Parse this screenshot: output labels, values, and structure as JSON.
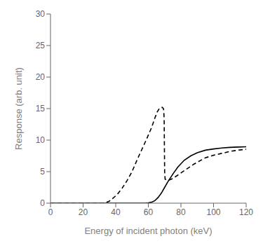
{
  "chart_data": {
    "type": "line",
    "xlabel": "Energy of incident photon (keV)",
    "ylabel": "Response (arb. unit)",
    "xlim": [
      0,
      120
    ],
    "ylim": [
      0,
      30
    ],
    "xticks": [
      0,
      20,
      40,
      60,
      80,
      100,
      120
    ],
    "yticks": [
      0,
      5,
      10,
      15,
      20,
      25,
      30
    ],
    "grid": false,
    "series": [
      {
        "color": "#000000",
        "line_style": "dashed",
        "x": [
          0,
          33,
          34,
          36,
          38,
          41,
          44,
          47,
          50,
          53,
          56,
          59,
          62,
          64,
          65.5,
          67,
          68.5,
          69.3,
          69.7,
          70.0,
          70.3,
          72,
          75,
          80,
          88,
          95,
          100,
          105,
          110,
          115,
          120
        ],
        "values": [
          0,
          0,
          0.1,
          0.3,
          0.7,
          1.4,
          2.4,
          3.6,
          5.0,
          6.8,
          8.5,
          10.2,
          12.0,
          13.5,
          14.5,
          15.1,
          15.2,
          15.0,
          13.5,
          5.0,
          3.8,
          3.6,
          3.9,
          4.8,
          6.2,
          7.2,
          7.6,
          7.9,
          8.2,
          8.4,
          8.55
        ]
      },
      {
        "color": "#000000",
        "line_style": "solid",
        "x": [
          0,
          58,
          60,
          62,
          64,
          66,
          68,
          70,
          72,
          75,
          78,
          82,
          86,
          90,
          95,
          100,
          105,
          110,
          115,
          120
        ],
        "values": [
          0,
          0,
          0.05,
          0.15,
          0.4,
          0.9,
          1.6,
          2.5,
          3.4,
          4.6,
          5.7,
          6.8,
          7.5,
          8.0,
          8.4,
          8.6,
          8.75,
          8.85,
          8.9,
          8.95
        ]
      }
    ]
  }
}
